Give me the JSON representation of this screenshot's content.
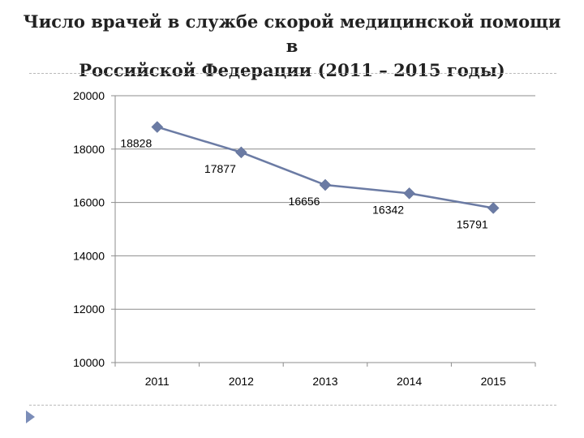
{
  "slide": {
    "title_lines": [
      "Число врачей в службе скорой медицинской помощи в",
      "Российской Федерации (2011 – 2015 годы)"
    ]
  },
  "colors": {
    "series": "#6b7ba4",
    "grid": "#8c8c8c",
    "bullet": "#7b8db8"
  },
  "chart_data": {
    "type": "line",
    "categories": [
      "2011",
      "2012",
      "2013",
      "2014",
      "2015"
    ],
    "series": [
      {
        "values": [
          18828,
          17877,
          16656,
          16342,
          15791
        ]
      }
    ],
    "data_labels": [
      "18828",
      "17877",
      "16656",
      "16342",
      "15791"
    ],
    "y_ticks": [
      "10000",
      "12000",
      "14000",
      "16000",
      "18000",
      "20000"
    ],
    "ylim": [
      10000,
      20000
    ],
    "title": "",
    "xlabel": "",
    "ylabel": "",
    "grid": true,
    "legend": "none",
    "marker": "diamond"
  }
}
